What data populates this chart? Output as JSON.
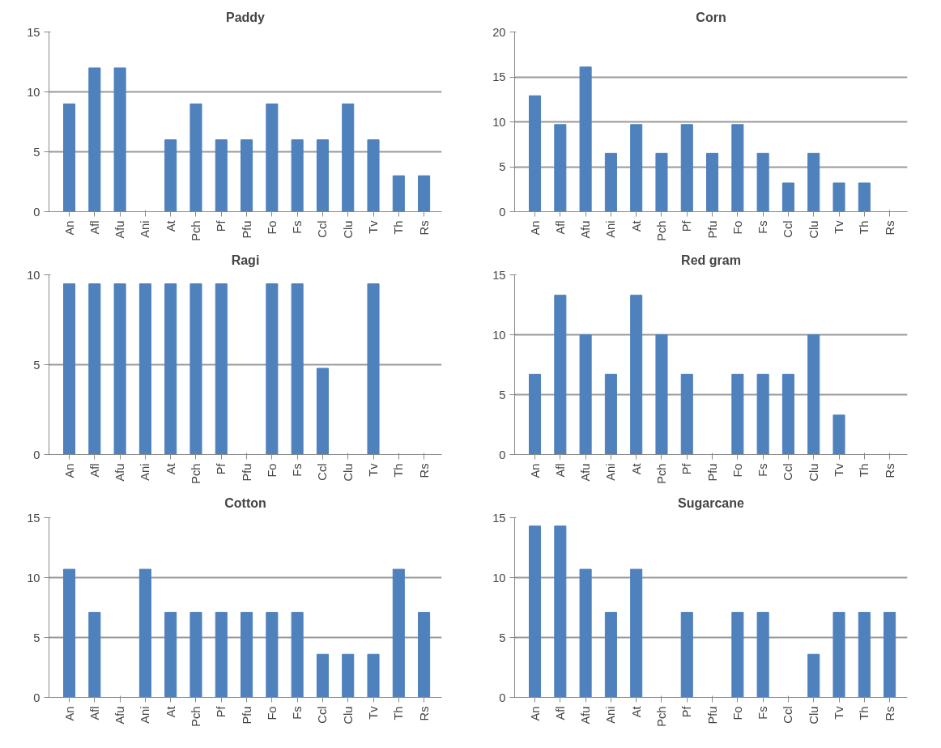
{
  "chart_data": [
    {
      "type": "bar",
      "title": "Paddy",
      "categories": [
        "An",
        "Afl",
        "Afu",
        "Ani",
        "At",
        "Pch",
        "Pf",
        "Pfu",
        "Fo",
        "Fs",
        "Ccl",
        "Clu",
        "Tv",
        "Th",
        "Rs"
      ],
      "values": [
        9,
        12,
        12,
        0,
        6,
        9,
        6,
        6,
        9,
        6,
        6,
        9,
        6,
        3,
        3
      ],
      "color": "#4f81bd",
      "ylim": [
        0,
        15
      ],
      "yticks": [
        0,
        5,
        10,
        15
      ],
      "grid": "y"
    },
    {
      "type": "bar",
      "title": "Corn",
      "categories": [
        "An",
        "Afl",
        "Afu",
        "Ani",
        "At",
        "Pch",
        "Pf",
        "Pfu",
        "Fo",
        "Fs",
        "Ccl",
        "Clu",
        "Tv",
        "Th",
        "Rs"
      ],
      "values": [
        12.9,
        9.7,
        16.1,
        6.5,
        9.7,
        6.5,
        9.7,
        6.5,
        9.7,
        6.5,
        3.2,
        6.5,
        3.2,
        3.2,
        0
      ],
      "color": "#4f81bd",
      "ylim": [
        0,
        20
      ],
      "yticks": [
        0,
        5,
        10,
        15,
        20
      ],
      "grid": "y"
    },
    {
      "type": "bar",
      "title": "Ragi",
      "categories": [
        "An",
        "Afl",
        "Afu",
        "Ani",
        "At",
        "Pch",
        "Pf",
        "Pfu",
        "Fo",
        "Fs",
        "Ccl",
        "Clu",
        "Tv",
        "Th",
        "Rs"
      ],
      "values": [
        9.5,
        9.5,
        9.5,
        9.5,
        9.5,
        9.5,
        9.5,
        0,
        9.5,
        9.5,
        4.8,
        0,
        9.5,
        0,
        0
      ],
      "color": "#4f81bd",
      "ylim": [
        0,
        10
      ],
      "yticks": [
        0,
        5,
        10
      ],
      "grid": "y"
    },
    {
      "type": "bar",
      "title": "Red gram",
      "categories": [
        "An",
        "Afl",
        "Afu",
        "Ani",
        "At",
        "Pch",
        "Pf",
        "Pfu",
        "Fo",
        "Fs",
        "Ccl",
        "Clu",
        "Tv",
        "Th",
        "Rs"
      ],
      "values": [
        6.7,
        13.3,
        10,
        6.7,
        13.3,
        10,
        6.7,
        0,
        6.7,
        6.7,
        6.7,
        10,
        3.3,
        0,
        0
      ],
      "color": "#4f81bd",
      "ylim": [
        0,
        15
      ],
      "yticks": [
        0,
        5,
        10,
        15
      ],
      "grid": "y"
    },
    {
      "type": "bar",
      "title": "Cotton",
      "categories": [
        "An",
        "Afl",
        "Afu",
        "Ani",
        "At",
        "Pch",
        "Pf",
        "Pfu",
        "Fo",
        "Fs",
        "Ccl",
        "Clu",
        "Tv",
        "Th",
        "Rs"
      ],
      "values": [
        10.7,
        7.1,
        0,
        10.7,
        7.1,
        7.1,
        7.1,
        7.1,
        7.1,
        7.1,
        3.6,
        3.6,
        3.6,
        10.7,
        7.1
      ],
      "color": "#4f81bd",
      "ylim": [
        0,
        15
      ],
      "yticks": [
        0,
        5,
        10,
        15
      ],
      "grid": "y"
    },
    {
      "type": "bar",
      "title": "Sugarcane",
      "categories": [
        "An",
        "Afl",
        "Afu",
        "Ani",
        "At",
        "Pch",
        "Pf",
        "Pfu",
        "Fo",
        "Fs",
        "Ccl",
        "Clu",
        "Tv",
        "Th",
        "Rs"
      ],
      "values": [
        14.3,
        14.3,
        10.7,
        7.1,
        10.7,
        0,
        7.1,
        0,
        7.1,
        7.1,
        0,
        3.6,
        7.1,
        7.1,
        7.1
      ],
      "color": "#4f81bd",
      "ylim": [
        0,
        15
      ],
      "yticks": [
        0,
        5,
        10,
        15
      ],
      "grid": "y"
    }
  ]
}
